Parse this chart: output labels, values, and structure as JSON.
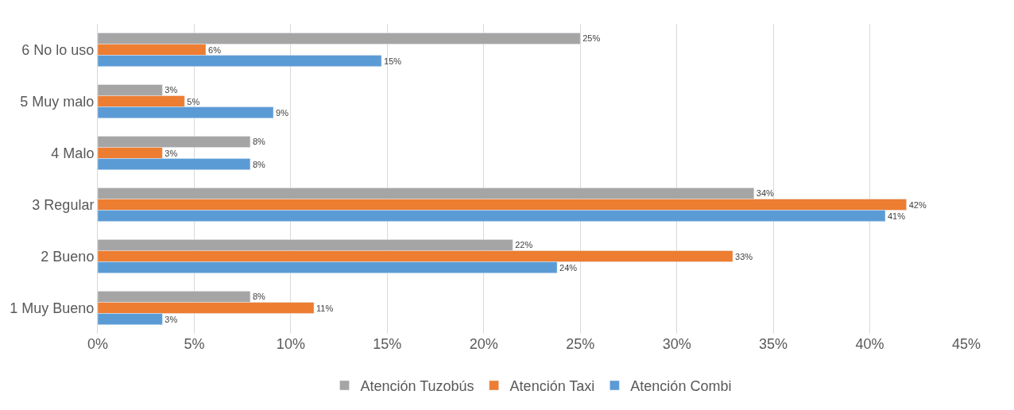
{
  "chart_data": {
    "type": "bar",
    "orientation": "horizontal",
    "categories": [
      "6 No lo uso",
      "5 Muy malo",
      "4 Malo",
      "3 Regular",
      "2 Bueno",
      "1 Muy Bueno"
    ],
    "series": [
      {
        "name": "Atención Tuzobús",
        "color": "#a5a5a5",
        "values": [
          25.0,
          3.35,
          7.9,
          34.0,
          21.5,
          7.9
        ],
        "value_labels": [
          "25%",
          "3%",
          "8%",
          "34%",
          "22%",
          "8%"
        ]
      },
      {
        "name": "Atención Taxi",
        "color": "#ed7d31",
        "values": [
          5.6,
          4.5,
          3.35,
          41.9,
          32.9,
          11.2
        ],
        "value_labels": [
          "6%",
          "5%",
          "3%",
          "42%",
          "33%",
          "11%"
        ]
      },
      {
        "name": "Atención Combi",
        "color": "#5b9bd5",
        "values": [
          14.7,
          9.1,
          7.9,
          40.8,
          23.8,
          3.35
        ],
        "value_labels": [
          "15%",
          "9%",
          "8%",
          "41%",
          "24%",
          "3%"
        ]
      }
    ],
    "xlim": [
      0,
      45
    ],
    "xticks": [
      {
        "value": 0,
        "label": "0%"
      },
      {
        "value": 5,
        "label": "5%"
      },
      {
        "value": 10,
        "label": "10%"
      },
      {
        "value": 15,
        "label": "15%"
      },
      {
        "value": 20,
        "label": "20%"
      },
      {
        "value": 25,
        "label": "25%"
      },
      {
        "value": 30,
        "label": "30%"
      },
      {
        "value": 35,
        "label": "35%"
      },
      {
        "value": 40,
        "label": "40%"
      },
      {
        "value": 45,
        "label": "45%"
      }
    ],
    "grid": "x",
    "legend": "bottom"
  }
}
